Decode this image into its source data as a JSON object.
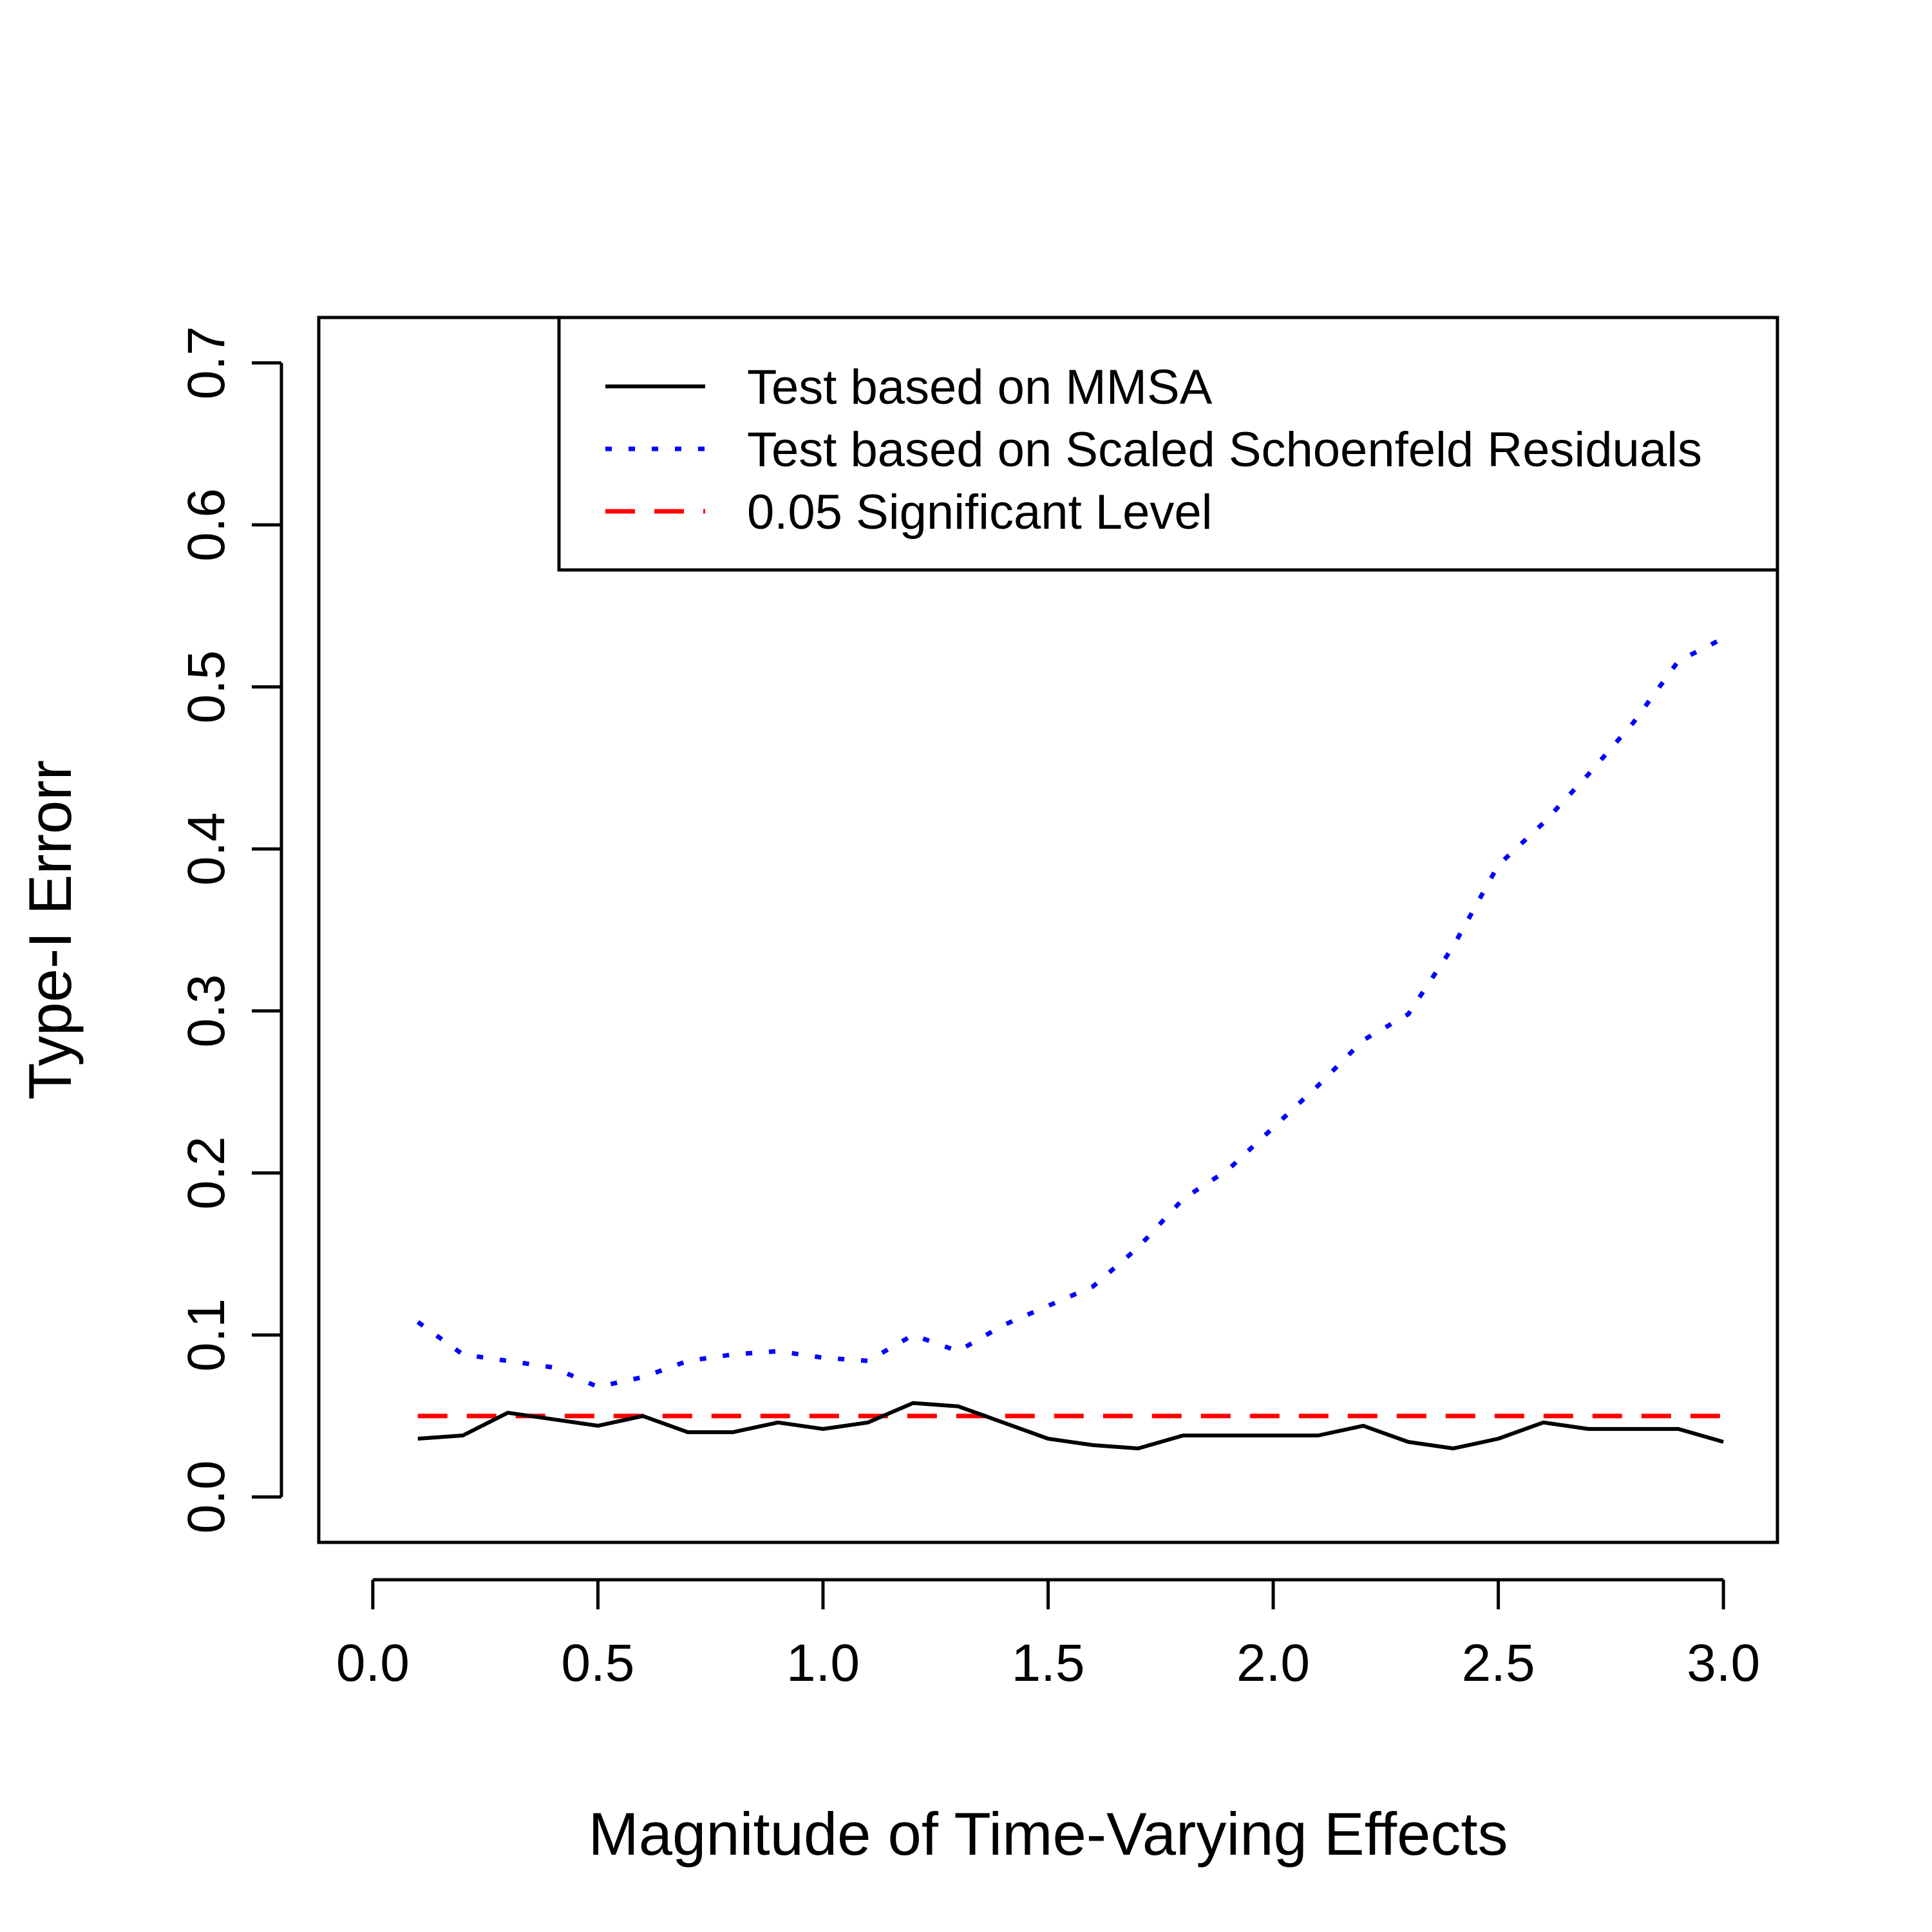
{
  "chart_data": {
    "type": "line",
    "title": "",
    "xlabel": "Magnitude of Time-Varying Effects",
    "ylabel": "Type-I Errorr",
    "xlim": [
      -0.12,
      3.12
    ],
    "ylim": [
      -0.028,
      0.728
    ],
    "x_ticks": [
      0.0,
      0.5,
      1.0,
      1.5,
      2.0,
      2.5,
      3.0
    ],
    "x_tick_labels": [
      "0.0",
      "0.5",
      "1.0",
      "1.5",
      "2.0",
      "2.5",
      "3.0"
    ],
    "y_ticks": [
      0.0,
      0.1,
      0.2,
      0.3,
      0.4,
      0.5,
      0.6,
      0.7
    ],
    "y_tick_labels": [
      "0.0",
      "0.1",
      "0.2",
      "0.3",
      "0.4",
      "0.5",
      "0.6",
      "0.7"
    ],
    "grid": false,
    "legend_position": "top-right",
    "x": [
      0.1,
      0.2,
      0.3,
      0.4,
      0.5,
      0.6,
      0.7,
      0.8,
      0.9,
      1.0,
      1.1,
      1.2,
      1.3,
      1.4,
      1.5,
      1.6,
      1.7,
      1.8,
      1.9,
      2.0,
      2.1,
      2.2,
      2.3,
      2.4,
      2.5,
      2.6,
      2.7,
      2.8,
      2.9,
      3.0
    ],
    "series": [
      {
        "name": "Test based on MMSA",
        "color": "#000000",
        "style": "solid",
        "values": [
          0.036,
          0.038,
          0.052,
          0.048,
          0.044,
          0.05,
          0.04,
          0.04,
          0.046,
          0.042,
          0.046,
          0.058,
          0.056,
          0.046,
          0.036,
          0.032,
          0.03,
          0.038,
          0.038,
          0.038,
          0.038,
          0.044,
          0.034,
          0.03,
          0.036,
          0.046,
          0.042,
          0.042,
          0.042,
          0.034
        ]
      },
      {
        "name": "Test based on Scaled Schoenfeld Residuals",
        "color": "#0000ff",
        "style": "dotted",
        "values": [
          0.108,
          0.088,
          0.084,
          0.08,
          0.068,
          0.074,
          0.084,
          0.088,
          0.09,
          0.086,
          0.084,
          0.1,
          0.09,
          0.106,
          0.118,
          0.13,
          0.154,
          0.184,
          0.202,
          0.228,
          0.254,
          0.282,
          0.298,
          0.34,
          0.39,
          0.416,
          0.446,
          0.478,
          0.516,
          0.53
        ]
      },
      {
        "name": "0.05 Significant Level",
        "color": "#ff0000",
        "style": "dashed",
        "values": [
          0.05,
          0.05,
          0.05,
          0.05,
          0.05,
          0.05,
          0.05,
          0.05,
          0.05,
          0.05,
          0.05,
          0.05,
          0.05,
          0.05,
          0.05,
          0.05,
          0.05,
          0.05,
          0.05,
          0.05,
          0.05,
          0.05,
          0.05,
          0.05,
          0.05,
          0.05,
          0.05,
          0.05,
          0.05,
          0.05
        ]
      }
    ]
  }
}
